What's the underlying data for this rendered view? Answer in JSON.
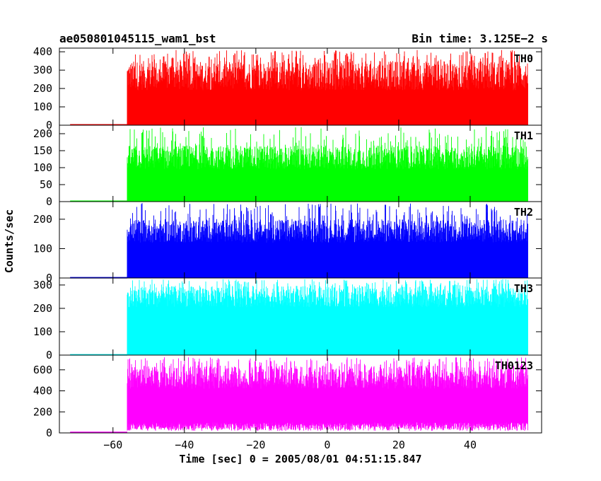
{
  "chart_data": {
    "type": "line",
    "title_left": "ae050801045115_wam1_bst",
    "title_right": "Bin time: 3.125E−2 s",
    "xlabel": "Time [sec] 0 = 2005/08/01 04:51:15.847",
    "ylabel": "Counts/sec",
    "xlim": [
      -75,
      60
    ],
    "x_ticks": [
      -60,
      -40,
      -20,
      0,
      20,
      40
    ],
    "x_tick_labels": [
      "−60",
      "−40",
      "−20",
      "0",
      "20",
      "40"
    ],
    "grid": false,
    "series": [
      {
        "name": "TH0",
        "color": "#ff0000",
        "ylim": [
          0,
          420
        ],
        "y_ticks": [
          0,
          100,
          200,
          300,
          400
        ],
        "pre_start": -72,
        "pre_level": 2,
        "burst_start": -56,
        "burst_end": 56,
        "baseline": 270,
        "spread": 80,
        "spike_max": 410
      },
      {
        "name": "TH1",
        "color": "#00ff00",
        "ylim": [
          0,
          225
        ],
        "y_ticks": [
          0,
          50,
          100,
          150,
          200
        ],
        "pre_start": -72,
        "pre_level": 1,
        "burst_start": -56,
        "burst_end": 56,
        "baseline": 130,
        "spread": 35,
        "spike_max": 220
      },
      {
        "name": "TH2",
        "color": "#0000ff",
        "ylim": [
          0,
          260
        ],
        "y_ticks": [
          0,
          100,
          200
        ],
        "pre_start": -72,
        "pre_level": 1,
        "burst_start": -56,
        "burst_end": 56,
        "baseline": 160,
        "spread": 40,
        "spike_max": 255
      },
      {
        "name": "TH3",
        "color": "#00ffff",
        "ylim": [
          0,
          330
        ],
        "y_ticks": [
          0,
          100,
          200,
          300
        ],
        "pre_start": -72,
        "pre_level": 1,
        "burst_start": -56,
        "burst_end": 56,
        "baseline": 250,
        "spread": 45,
        "spike_max": 325
      },
      {
        "name": "TH0123",
        "color": "#ff00ff",
        "ylim": [
          0,
          740
        ],
        "y_ticks": [
          0,
          200,
          400,
          600
        ],
        "pre_start": -72,
        "pre_level": 5,
        "burst_start": -56,
        "burst_end": 56,
        "baseline": 530,
        "spread": 110,
        "spike_max": 720,
        "floor": 50
      }
    ]
  }
}
